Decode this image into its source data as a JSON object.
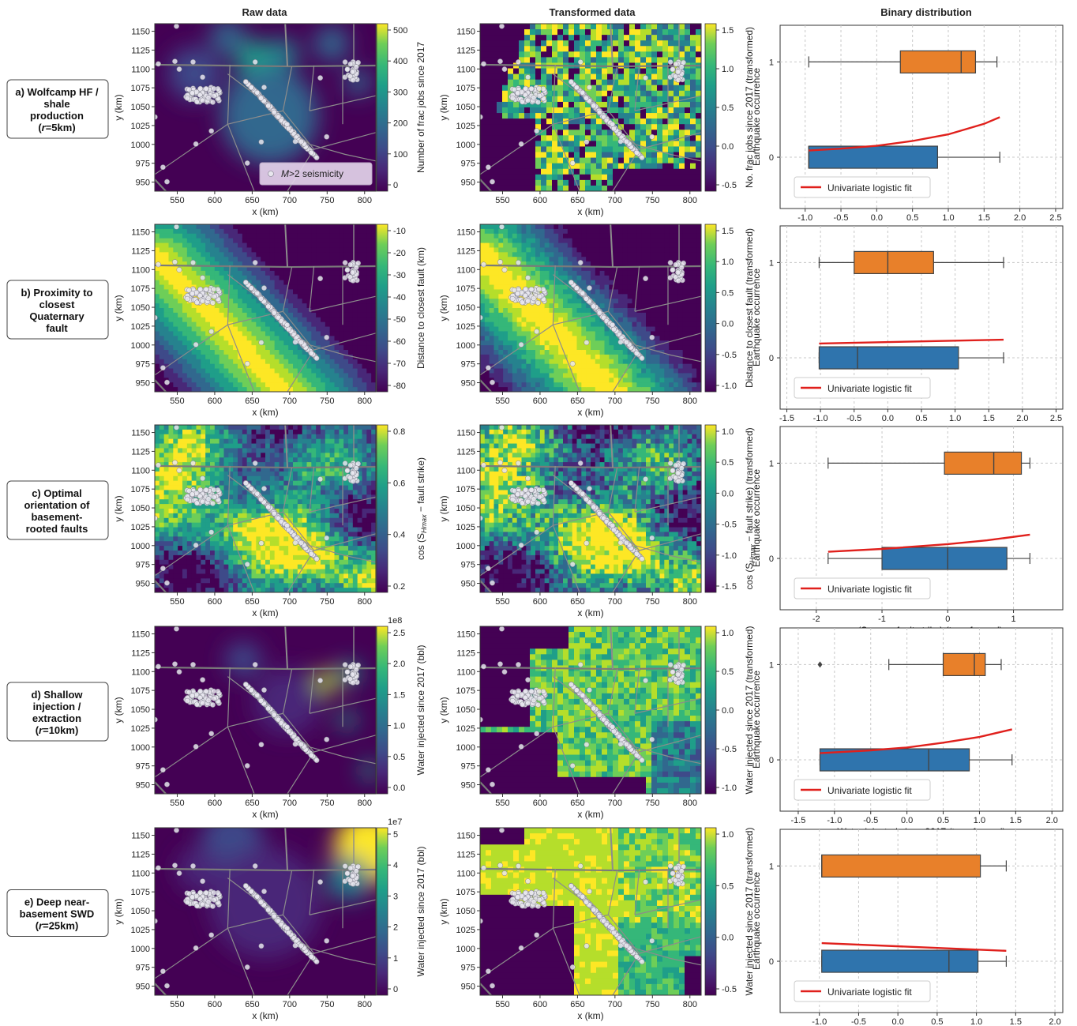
{
  "column_headers": [
    "Raw data",
    "Transformed data",
    "Binary distribution"
  ],
  "map_axes": {
    "xlabel": "x (km)",
    "ylabel": "y (km)",
    "xticks": [
      "550",
      "600",
      "650",
      "700",
      "750",
      "800"
    ],
    "yticks": [
      "1150",
      "1125",
      "1100",
      "1075",
      "1050",
      "1025",
      "1000",
      "975",
      "950"
    ],
    "xlim": [
      520,
      815
    ],
    "ylim": [
      938,
      1160
    ]
  },
  "seismicity_legend": "M>2 seismicity",
  "box_axes": {
    "ylabel": "Earthquake occurrence",
    "yticks": [
      "1",
      "0"
    ],
    "legend_label": "Univariate logistic fit"
  },
  "colors": {
    "orange_box": "#e8802a",
    "blue_box": "#2f74ad",
    "fit_line": "#e0201c",
    "cmap_low": "#440154",
    "cmap_high": "#fde725"
  },
  "rows": [
    {
      "label": [
        "a) Wolfcamp HF /",
        "shale",
        "production",
        "(r=5km)"
      ],
      "raw_cbar_label": "Number of frac jobs since 2017",
      "raw_cbar_ticks": [
        "500",
        "400",
        "300",
        "200",
        "100",
        "0"
      ],
      "raw_cbar_exponent": "",
      "trans_cbar_label": "No. frac jobs since 2017 (transformed)",
      "trans_cbar_ticks": [
        "1.5",
        "1.0",
        "0.5",
        "0.0",
        "-0.5"
      ],
      "box_xlabel": "No. frac jobs since 2017 (transformed)",
      "box_xticks": [
        "-1.0",
        "-0.5",
        "0.0",
        "0.5",
        "1.0",
        "1.5",
        "2.0",
        "2.5"
      ],
      "chart_data": {
        "type": "box",
        "xlim": [
          -1.35,
          2.6
        ],
        "classes": [
          {
            "name": "1",
            "whisker_low": -0.95,
            "q1": 0.33,
            "median": 1.18,
            "q3": 1.38,
            "whisker_high": 1.68,
            "outliers": []
          },
          {
            "name": "0",
            "whisker_low": -0.95,
            "q1": -0.95,
            "median": -0.95,
            "q3": 0.85,
            "whisker_high": 1.72,
            "outliers": []
          }
        ],
        "fit_line": {
          "x": [
            -0.95,
            -0.5,
            0.0,
            0.5,
            1.0,
            1.5,
            1.72
          ],
          "p": [
            0.07,
            0.09,
            0.12,
            0.17,
            0.24,
            0.35,
            0.42
          ]
        }
      }
    },
    {
      "label": [
        "b) Proximity to",
        "closest",
        "Quaternary",
        "fault"
      ],
      "raw_cbar_label": "Distance to closest fault (km)",
      "raw_cbar_ticks": [
        "-10",
        "-20",
        "-30",
        "-40",
        "-50",
        "-60",
        "-70",
        "-80"
      ],
      "raw_cbar_exponent": "",
      "trans_cbar_label": "Distance to closest fault (transformed)",
      "trans_cbar_ticks": [
        "1.5",
        "1.0",
        "0.5",
        "0.0",
        "-0.5",
        "-1.0"
      ],
      "box_xlabel": "Distance to closest fault (transformed)",
      "box_xticks": [
        "-1.5",
        "-1.0",
        "-0.5",
        "0.0",
        "0.5",
        "1.0",
        "1.5",
        "2.0",
        "2.5"
      ],
      "chart_data": {
        "type": "box",
        "xlim": [
          -1.6,
          2.6
        ],
        "classes": [
          {
            "name": "1",
            "whisker_low": -1.02,
            "q1": -0.5,
            "median": 0.0,
            "q3": 0.68,
            "whisker_high": 1.72,
            "outliers": []
          },
          {
            "name": "0",
            "whisker_low": -1.02,
            "q1": -1.02,
            "median": -0.45,
            "q3": 1.05,
            "whisker_high": 1.72,
            "outliers": []
          }
        ],
        "fit_line": {
          "x": [
            -1.02,
            1.72
          ],
          "p": [
            0.15,
            0.19
          ]
        }
      }
    },
    {
      "label": [
        "c) Optimal",
        "orientation of",
        "basement-",
        "rooted faults"
      ],
      "raw_cbar_label": "cos (SHmax − fault strike)",
      "raw_cbar_ticks": [
        "0.8",
        "0.6",
        "0.4",
        "0.2"
      ],
      "raw_cbar_exponent": "",
      "trans_cbar_label": "cos (SHmax − fault strike) (transformed)",
      "trans_cbar_ticks": [
        "1.0",
        "0.5",
        "0.0",
        "-0.5",
        "-1.0",
        "-1.5"
      ],
      "box_xlabel": "cos (SHmax − fault strike) (transformed)",
      "box_xticks": [
        "-2",
        "-1",
        "0",
        "1"
      ],
      "chart_data": {
        "type": "box",
        "xlim": [
          -2.55,
          1.75
        ],
        "classes": [
          {
            "name": "1",
            "whisker_low": -1.82,
            "q1": -0.05,
            "median": 0.7,
            "q3": 1.12,
            "whisker_high": 1.25,
            "outliers": []
          },
          {
            "name": "0",
            "whisker_low": -1.82,
            "q1": -1.0,
            "median": 0.0,
            "q3": 0.9,
            "whisker_high": 1.25,
            "outliers": []
          }
        ],
        "fit_line": {
          "x": [
            -1.82,
            -1.0,
            0.0,
            0.6,
            1.25
          ],
          "p": [
            0.07,
            0.1,
            0.15,
            0.19,
            0.25
          ]
        }
      }
    },
    {
      "label": [
        "d) Shallow",
        "injection /",
        "extraction",
        "(r=10km)"
      ],
      "raw_cbar_label": "Water injected since 2017 (bbl)",
      "raw_cbar_ticks": [
        "2.5",
        "2.0",
        "1.5",
        "1.0",
        "0.5",
        "0.0"
      ],
      "raw_cbar_exponent": "1e8",
      "trans_cbar_label": "Water injected since 2017 (transformed)",
      "trans_cbar_ticks": [
        "1.0",
        "0.5",
        "0.0",
        "-0.5",
        "-1.0"
      ],
      "box_xlabel": "Water injected since 2017 (transformed)",
      "box_xticks": [
        "-1.5",
        "-1.0",
        "-0.5",
        "0.0",
        "0.5",
        "1.0",
        "1.5",
        "2.0"
      ],
      "chart_data": {
        "type": "box",
        "xlim": [
          -1.75,
          2.15
        ],
        "classes": [
          {
            "name": "1",
            "whisker_low": -0.25,
            "q1": 0.5,
            "median": 0.93,
            "q3": 1.08,
            "whisker_high": 1.3,
            "outliers": [
              -1.2
            ]
          },
          {
            "name": "0",
            "whisker_low": -1.2,
            "q1": -1.2,
            "median": 0.3,
            "q3": 0.86,
            "whisker_high": 1.45,
            "outliers": []
          }
        ],
        "fit_line": {
          "x": [
            -1.2,
            -0.5,
            0.0,
            0.5,
            1.0,
            1.45
          ],
          "p": [
            0.07,
            0.1,
            0.13,
            0.18,
            0.24,
            0.32
          ]
        }
      }
    },
    {
      "label": [
        "e) Deep near-",
        "basement SWD",
        "(r=25km)"
      ],
      "raw_cbar_label": "Water injected since 2017 (bbl)",
      "raw_cbar_ticks": [
        "5",
        "4",
        "3",
        "2",
        "1",
        "0"
      ],
      "raw_cbar_exponent": "1e7",
      "trans_cbar_label": "Water injected since 2017 (transformed)",
      "trans_cbar_ticks": [
        "1.0",
        "0.5",
        "0.0",
        "-0.5"
      ],
      "box_xlabel": "Water injected since 2017 (transformed)",
      "box_xticks": [
        "-1.0",
        "-0.5",
        "0.0",
        "0.5",
        "1.0",
        "1.5",
        "2.0"
      ],
      "chart_data": {
        "type": "box",
        "xlim": [
          -1.5,
          2.1
        ],
        "classes": [
          {
            "name": "1",
            "whisker_low": -0.97,
            "q1": -0.97,
            "median": -0.97,
            "q3": 1.05,
            "whisker_high": 1.38,
            "outliers": []
          },
          {
            "name": "0",
            "whisker_low": -0.97,
            "q1": -0.97,
            "median": 0.65,
            "q3": 1.02,
            "whisker_high": 1.38,
            "outliers": []
          }
        ],
        "fit_line": {
          "x": [
            -0.97,
            1.38
          ],
          "p": [
            0.19,
            0.11
          ]
        }
      }
    }
  ]
}
